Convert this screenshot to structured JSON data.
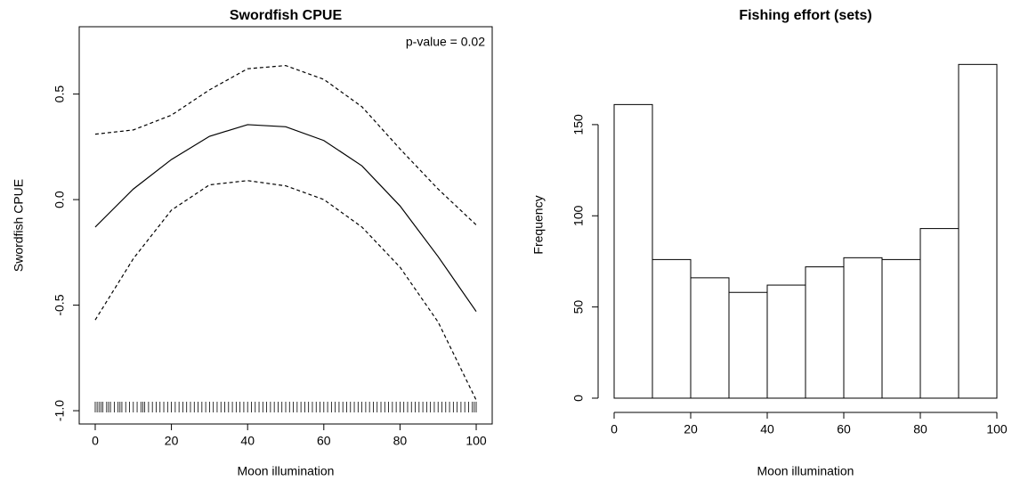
{
  "chart_data": [
    {
      "type": "line",
      "title": "Swordfish CPUE",
      "xlabel": "Moon illumination",
      "ylabel": "Swordfish CPUE",
      "annotation": "p-value = 0.02",
      "x": [
        0,
        10,
        20,
        30,
        40,
        50,
        60,
        70,
        80,
        90,
        100
      ],
      "series": [
        {
          "color": "#000000",
          "dashed": false,
          "values": [
            -0.13,
            0.05,
            0.19,
            0.3,
            0.355,
            0.345,
            0.28,
            0.16,
            -0.03,
            -0.27,
            -0.53
          ]
        },
        {
          "color": "#000000",
          "dashed": true,
          "values": [
            0.31,
            0.33,
            0.4,
            0.52,
            0.62,
            0.635,
            0.57,
            0.44,
            0.24,
            0.05,
            -0.12
          ]
        },
        {
          "color": "#000000",
          "dashed": true,
          "values": [
            -0.57,
            -0.28,
            -0.05,
            0.07,
            0.09,
            0.065,
            0.0,
            -0.13,
            -0.32,
            -0.58,
            -0.95
          ]
        }
      ],
      "rug": [
        0,
        0.5,
        1,
        1.5,
        2,
        3,
        3.5,
        4,
        5,
        6,
        6.5,
        7,
        8,
        9,
        10,
        11,
        12,
        12.5,
        13,
        14,
        15,
        16,
        17,
        18,
        19,
        20,
        21,
        22,
        23,
        24,
        25,
        26,
        27,
        28,
        29,
        30,
        31,
        32,
        33,
        34,
        35,
        36,
        37,
        38,
        39,
        40,
        41,
        42,
        43,
        44,
        45,
        46,
        47,
        48,
        49,
        50,
        51,
        52,
        53,
        54,
        55,
        56,
        57,
        58,
        59,
        60,
        61,
        62,
        63,
        64,
        65,
        66,
        67,
        68,
        69,
        70,
        71,
        72,
        73,
        74,
        75,
        76,
        77,
        78,
        79,
        80,
        81,
        82,
        83,
        84,
        85,
        86,
        87,
        88,
        89,
        90,
        91,
        92,
        93,
        94,
        95,
        96,
        97,
        98,
        99,
        99.5,
        100
      ],
      "xlim": [
        -4.2,
        104.2
      ],
      "ylim": [
        -1.063,
        0.819
      ],
      "xticks": [
        0,
        20,
        40,
        60,
        80,
        100
      ],
      "yticks": [
        {
          "value": -1,
          "label": "-1.0"
        },
        -0.5,
        {
          "value": 0,
          "label": "0.0"
        },
        0.5
      ]
    },
    {
      "type": "histogram",
      "title": "Fishing effort (sets)",
      "xlabel": "Moon illumination",
      "ylabel": "Frequency",
      "bins": [
        0,
        10,
        20,
        30,
        40,
        50,
        60,
        70,
        80,
        90,
        100
      ],
      "values": [
        161,
        76,
        66,
        58,
        62,
        72,
        77,
        76,
        93,
        183
      ],
      "color": "#ffffff",
      "xlim": [
        0,
        100
      ],
      "ylim": [
        0,
        190
      ],
      "xticks": [
        0,
        20,
        40,
        60,
        80,
        100
      ],
      "yticks": [
        0,
        50,
        100,
        150
      ]
    }
  ]
}
